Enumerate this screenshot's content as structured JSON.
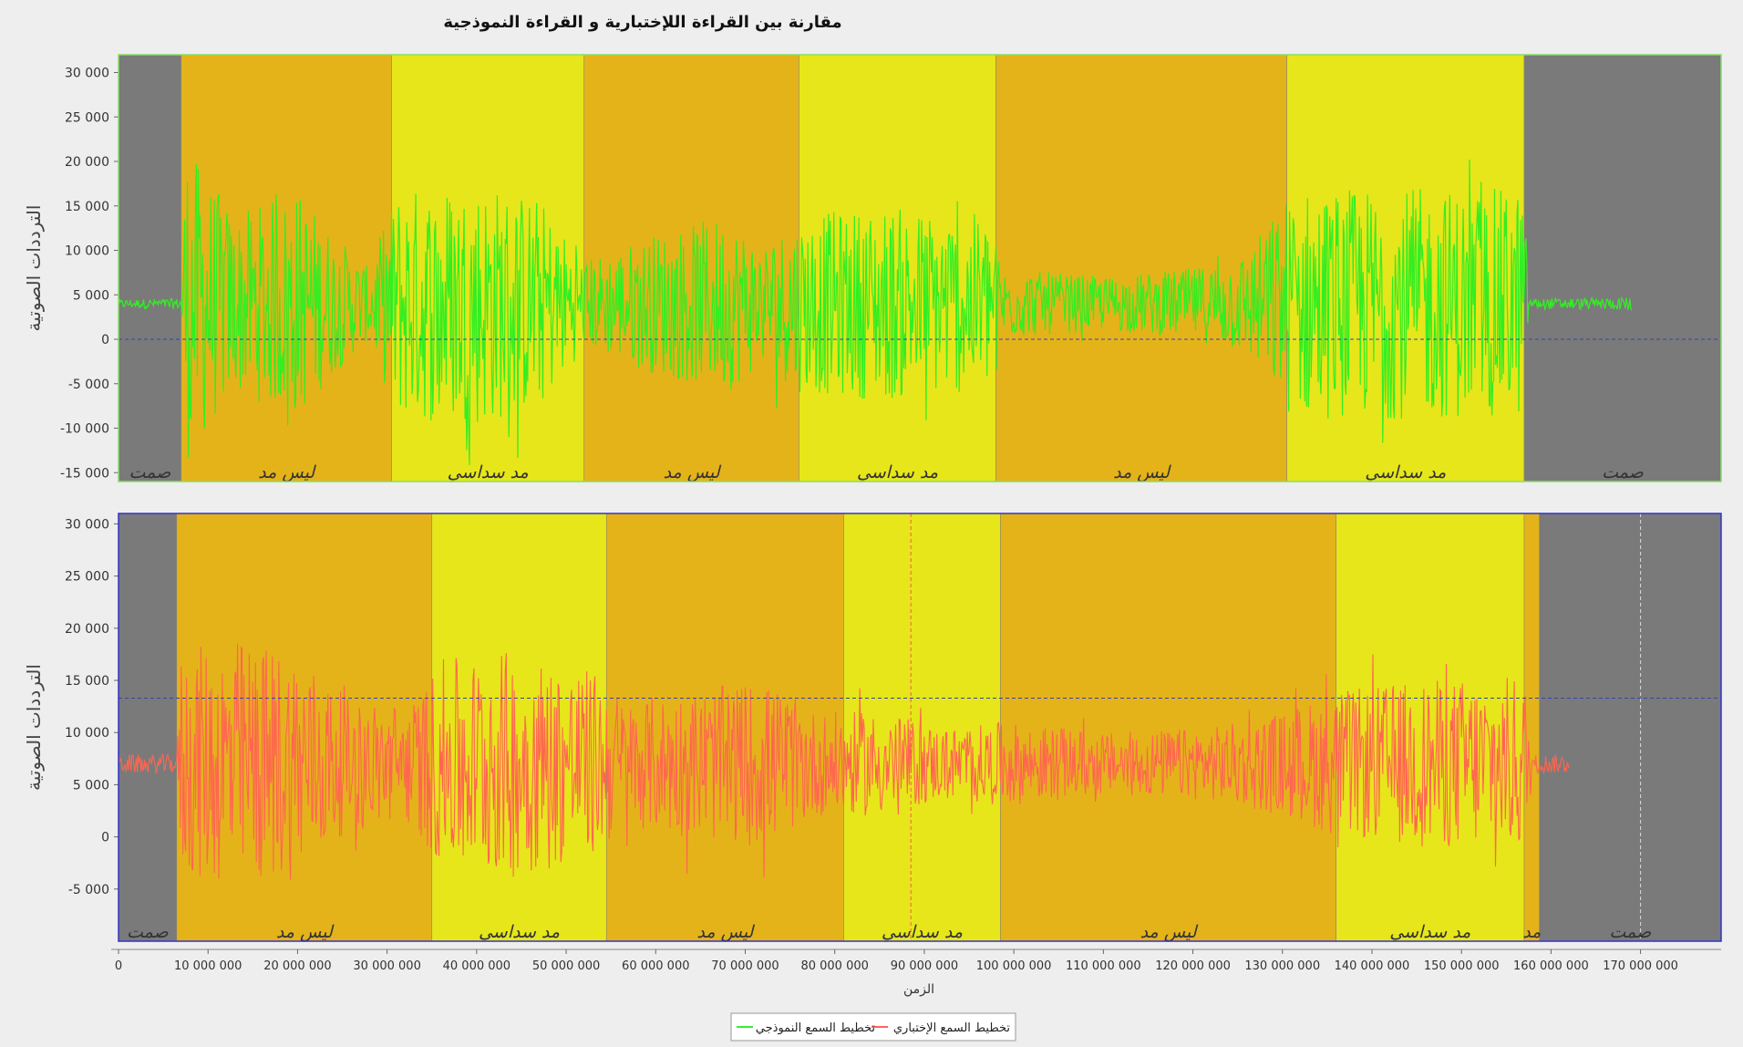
{
  "chart_data": {
    "type": "line",
    "title": "مقارنة بين القراءة اللإختبارية و القراءة النموذجية",
    "xlabel": "الزمن",
    "xlim": [
      0,
      179000000
    ],
    "x_ticks": [
      0,
      10000000,
      20000000,
      30000000,
      40000000,
      50000000,
      60000000,
      70000000,
      80000000,
      90000000,
      100000000,
      110000000,
      120000000,
      130000000,
      140000000,
      150000000,
      160000000,
      170000000
    ],
    "x_tick_labels": [
      "0",
      "10 000 000",
      "20 000 000",
      "30 000 000",
      "40 000 000",
      "50 000 000",
      "60 000 000",
      "70 000 000",
      "80 000 000",
      "90 000 000",
      "100 000 000",
      "110 000 000",
      "120 000 000",
      "130 000 000",
      "140 000 000",
      "150 000 000",
      "160 000 000",
      "170 000 000"
    ],
    "legend": {
      "placement": "bottom-center",
      "items": [
        {
          "label": "تخطيط السمع الإختباري",
          "color": "#ff6655"
        },
        {
          "label": "تخطيط السمع النموذجي",
          "color": "#33ee33"
        }
      ]
    },
    "colors": {
      "silence": "#7a7a7a",
      "madd": "#e4b31a",
      "madd_sudasi": "#e6e61a"
    },
    "panels": [
      {
        "id": "top",
        "ylabel": "الترددات الصوتية",
        "ylim": [
          -16000,
          32000
        ],
        "y_ticks": [
          -15000,
          -10000,
          -5000,
          0,
          5000,
          10000,
          15000,
          20000,
          25000,
          30000
        ],
        "y_tick_labels": [
          "-15 000",
          "-10 000",
          "-5 000",
          "0",
          "5 000",
          "10 000",
          "15 000",
          "20 000",
          "25 000",
          "30 000"
        ],
        "border_color": "#88dd66",
        "line_color": "#33ee22",
        "baseline": 4000,
        "ref_lines": [
          {
            "y": 0,
            "orientation": "h",
            "color": "#3344aa"
          }
        ],
        "segments": [
          {
            "start": 0,
            "end": 7000000,
            "kind": "silence",
            "label": "صمت"
          },
          {
            "start": 7000000,
            "end": 30500000,
            "kind": "madd",
            "label": "ليس مد"
          },
          {
            "start": 30500000,
            "end": 52000000,
            "kind": "madd_sudasi",
            "label": "مد سداسي"
          },
          {
            "start": 52000000,
            "end": 76000000,
            "kind": "madd",
            "label": "ليس مد"
          },
          {
            "start": 76000000,
            "end": 98000000,
            "kind": "madd_sudasi",
            "label": "مد سداسي"
          },
          {
            "start": 98000000,
            "end": 130500000,
            "kind": "madd",
            "label": "ليس مد"
          },
          {
            "start": 130500000,
            "end": 157000000,
            "kind": "madd_sudasi",
            "label": "مد سداسي"
          },
          {
            "start": 157000000,
            "end": 179000000,
            "kind": "silence",
            "label": "صمت"
          }
        ],
        "envelope": [
          {
            "x": 0,
            "amp": 500
          },
          {
            "x": 7000000,
            "amp": 600
          },
          {
            "x": 7500000,
            "amp": 18000
          },
          {
            "x": 13000000,
            "amp": 10000
          },
          {
            "x": 20000000,
            "amp": 13000
          },
          {
            "x": 24000000,
            "amp": 8000
          },
          {
            "x": 28000000,
            "amp": 4000
          },
          {
            "x": 31000000,
            "amp": 13000
          },
          {
            "x": 40000000,
            "amp": 14000
          },
          {
            "x": 47000000,
            "amp": 12000
          },
          {
            "x": 52000000,
            "amp": 5000
          },
          {
            "x": 60000000,
            "amp": 8000
          },
          {
            "x": 68000000,
            "amp": 10000
          },
          {
            "x": 72000000,
            "amp": 7000
          },
          {
            "x": 76000000,
            "amp": 10000
          },
          {
            "x": 86000000,
            "amp": 11000
          },
          {
            "x": 97000000,
            "amp": 10000
          },
          {
            "x": 99000000,
            "amp": 4000
          },
          {
            "x": 110000000,
            "amp": 3000
          },
          {
            "x": 120000000,
            "amp": 4000
          },
          {
            "x": 126000000,
            "amp": 6000
          },
          {
            "x": 129000000,
            "amp": 10000
          },
          {
            "x": 131000000,
            "amp": 13000
          },
          {
            "x": 145000000,
            "amp": 13000
          },
          {
            "x": 157000000,
            "amp": 13000
          },
          {
            "x": 157500000,
            "amp": 600
          },
          {
            "x": 168500000,
            "amp": 700
          },
          {
            "x": 169000000,
            "amp": 1200
          }
        ],
        "end_x": 169000000
      },
      {
        "id": "bottom",
        "ylabel": "الترددات الصوتية",
        "ylim": [
          -10000,
          31000
        ],
        "y_ticks": [
          -5000,
          0,
          5000,
          10000,
          15000,
          20000,
          25000,
          30000
        ],
        "y_tick_labels": [
          "-5 000",
          "0",
          "5 000",
          "10 000",
          "15 000",
          "20 000",
          "25 000",
          "30 000"
        ],
        "border_color": "#3333cc",
        "line_color": "#ff6650",
        "baseline": 7000,
        "ref_lines": [
          {
            "y": 13300,
            "orientation": "h",
            "color": "#3344aa"
          },
          {
            "x": 88500000,
            "orientation": "v",
            "color": "#ff5555"
          },
          {
            "x": 170000000,
            "orientation": "v",
            "color": "#dddddd"
          }
        ],
        "segments": [
          {
            "start": 0,
            "end": 6500000,
            "kind": "silence",
            "label": "صمت"
          },
          {
            "start": 6500000,
            "end": 35000000,
            "kind": "madd",
            "label": "ليس مد"
          },
          {
            "start": 35000000,
            "end": 54500000,
            "kind": "madd_sudasi",
            "label": "مد سداسي"
          },
          {
            "start": 54500000,
            "end": 81000000,
            "kind": "madd",
            "label": "ليس مد"
          },
          {
            "start": 81000000,
            "end": 98500000,
            "kind": "madd_sudasi",
            "label": "مد سداسي"
          },
          {
            "start": 98500000,
            "end": 136000000,
            "kind": "madd",
            "label": "ليس مد"
          },
          {
            "start": 136000000,
            "end": 157000000,
            "kind": "madd_sudasi",
            "label": "مد سداسي"
          },
          {
            "start": 157000000,
            "end": 158700000,
            "kind": "madd",
            "label": "مد"
          },
          {
            "start": 158700000,
            "end": 179000000,
            "kind": "silence",
            "label": "صمت"
          }
        ],
        "envelope": [
          {
            "x": 0,
            "amp": 900
          },
          {
            "x": 6500000,
            "amp": 900
          },
          {
            "x": 7000000,
            "amp": 11000
          },
          {
            "x": 13000000,
            "amp": 12000
          },
          {
            "x": 20000000,
            "amp": 11000
          },
          {
            "x": 26000000,
            "amp": 6000
          },
          {
            "x": 33000000,
            "amp": 6000
          },
          {
            "x": 36000000,
            "amp": 10000
          },
          {
            "x": 44000000,
            "amp": 11000
          },
          {
            "x": 53000000,
            "amp": 9000
          },
          {
            "x": 57000000,
            "amp": 6000
          },
          {
            "x": 63000000,
            "amp": 7000
          },
          {
            "x": 72000000,
            "amp": 8000
          },
          {
            "x": 78000000,
            "amp": 5000
          },
          {
            "x": 85000000,
            "amp": 5000
          },
          {
            "x": 92000000,
            "amp": 3500
          },
          {
            "x": 99000000,
            "amp": 4000
          },
          {
            "x": 110000000,
            "amp": 3000
          },
          {
            "x": 122000000,
            "amp": 3500
          },
          {
            "x": 130000000,
            "amp": 5000
          },
          {
            "x": 136000000,
            "amp": 7000
          },
          {
            "x": 145000000,
            "amp": 8000
          },
          {
            "x": 157000000,
            "amp": 8500
          },
          {
            "x": 158000000,
            "amp": 900
          },
          {
            "x": 162000000,
            "amp": 900
          }
        ],
        "end_x": 162000000
      }
    ]
  }
}
